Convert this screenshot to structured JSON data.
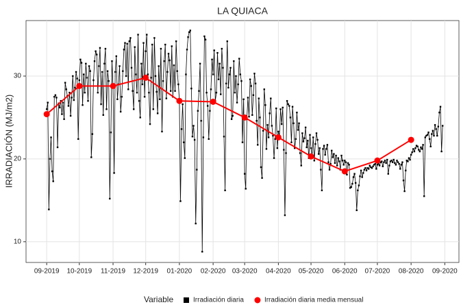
{
  "chart_data": {
    "type": "line",
    "title": "LA QUIACA",
    "y_label": "IRRADIACIÓN (MJ/m2)",
    "legend_title": "Variable",
    "xlim": [
      -19,
      379
    ],
    "ylim": [
      7.5,
      36.7
    ],
    "yticks": [
      10,
      20,
      30
    ],
    "grid": true,
    "legend_position": "bottom",
    "xticks": [
      {
        "value": 0,
        "label": "09-2019"
      },
      {
        "value": 30,
        "label": "10-2019"
      },
      {
        "value": 61,
        "label": "11-2019"
      },
      {
        "value": 91,
        "label": "12-2019"
      },
      {
        "value": 122,
        "label": "01-2020"
      },
      {
        "value": 153,
        "label": "02-2020"
      },
      {
        "value": 182,
        "label": "03-2020"
      },
      {
        "value": 213,
        "label": "04-2020"
      },
      {
        "value": 243,
        "label": "05-2020"
      },
      {
        "value": 274,
        "label": "06-2020"
      },
      {
        "value": 304,
        "label": "07-2020"
      },
      {
        "value": 335,
        "label": "08-2020"
      },
      {
        "value": 366,
        "label": "09-2020"
      }
    ],
    "series": [
      {
        "name": "Irradiación diaria",
        "color": "#000000",
        "marker": "square",
        "x": [
          0,
          1,
          2,
          3,
          4,
          5,
          6,
          7,
          8,
          9,
          10,
          11,
          12,
          13,
          14,
          15,
          16,
          17,
          18,
          19,
          20,
          21,
          22,
          23,
          24,
          25,
          26,
          27,
          28,
          29,
          30,
          31,
          32,
          33,
          34,
          35,
          36,
          37,
          38,
          39,
          40,
          41,
          42,
          43,
          44,
          45,
          46,
          47,
          48,
          49,
          50,
          51,
          52,
          53,
          54,
          55,
          56,
          57,
          58,
          59,
          60,
          61,
          62,
          63,
          64,
          65,
          66,
          67,
          68,
          69,
          70,
          71,
          72,
          73,
          74,
          75,
          76,
          77,
          78,
          79,
          80,
          81,
          82,
          83,
          84,
          85,
          86,
          87,
          88,
          89,
          90,
          91,
          92,
          93,
          94,
          95,
          96,
          97,
          98,
          99,
          100,
          101,
          102,
          103,
          104,
          105,
          106,
          107,
          108,
          109,
          110,
          111,
          112,
          113,
          114,
          115,
          116,
          117,
          118,
          119,
          120,
          121,
          122,
          123,
          124,
          125,
          126,
          127,
          128,
          129,
          130,
          131,
          132,
          133,
          134,
          135,
          136,
          137,
          138,
          139,
          140,
          141,
          142,
          143,
          144,
          145,
          146,
          147,
          148,
          149,
          150,
          151,
          152,
          153,
          154,
          155,
          156,
          157,
          158,
          159,
          160,
          161,
          162,
          163,
          164,
          165,
          166,
          167,
          168,
          169,
          170,
          171,
          172,
          173,
          174,
          175,
          176,
          177,
          178,
          179,
          180,
          181,
          182,
          183,
          184,
          185,
          186,
          187,
          188,
          189,
          190,
          191,
          192,
          193,
          194,
          195,
          196,
          197,
          198,
          199,
          200,
          201,
          202,
          203,
          204,
          205,
          206,
          207,
          208,
          209,
          210,
          211,
          212,
          213,
          214,
          215,
          216,
          217,
          218,
          219,
          220,
          221,
          222,
          223,
          224,
          225,
          226,
          227,
          228,
          229,
          230,
          231,
          232,
          233,
          234,
          235,
          236,
          237,
          238,
          239,
          240,
          241,
          242,
          243,
          244,
          245,
          246,
          247,
          248,
          249,
          250,
          251,
          252,
          253,
          254,
          255,
          256,
          257,
          258,
          259,
          260,
          261,
          262,
          263,
          264,
          265,
          266,
          267,
          268,
          269,
          270,
          271,
          272,
          273,
          274,
          275,
          276,
          277,
          278,
          279,
          280,
          281,
          282,
          283,
          284,
          285,
          286,
          287,
          288,
          289,
          290,
          291,
          292,
          293,
          294,
          295,
          296,
          297,
          298,
          299,
          300,
          301,
          302,
          303,
          304,
          305,
          306,
          307,
          308,
          309,
          310,
          311,
          312,
          313,
          314,
          315,
          316,
          317,
          318,
          319,
          320,
          321,
          322,
          323,
          324,
          325,
          326,
          327,
          328,
          329,
          330,
          331,
          332,
          333,
          334,
          335,
          336,
          337,
          338,
          339,
          340,
          341,
          342,
          343,
          344,
          345,
          346,
          347,
          348,
          349,
          350,
          351,
          352,
          353,
          354,
          355,
          356,
          357,
          358,
          359,
          360,
          361,
          362,
          363,
          364
        ],
        "values": [
          26,
          26.8,
          13.9,
          20,
          22.6,
          18.5,
          17.3,
          27.5,
          27.7,
          27.4,
          21.4,
          26.7,
          26.2,
          27,
          25.4,
          26.8,
          24.8,
          29.2,
          28.4,
          27.6,
          26.4,
          28,
          25.2,
          27.4,
          30,
          27.1,
          28.6,
          30.5,
          29.7,
          22.4,
          29.5,
          32,
          31.6,
          26.5,
          30.2,
          28,
          31.5,
          29.8,
          27,
          31.2,
          30.6,
          20.2,
          23,
          29.5,
          31.8,
          33,
          32.6,
          28,
          31.2,
          33.4,
          26.6,
          30.5,
          25.3,
          31.5,
          33.3,
          26,
          30.6,
          29.4,
          15.2,
          23.2,
          31.8,
          28.6,
          18.3,
          30.5,
          32.4,
          27.2,
          29,
          31.2,
          25.7,
          27.5,
          30.6,
          33.2,
          34,
          30,
          33.9,
          28.4,
          34.2,
          34.6,
          31,
          28.2,
          26,
          33.5,
          30.2,
          28,
          35,
          27,
          25,
          31.5,
          29,
          34,
          27.5,
          33,
          35,
          30.2,
          28,
          24.2,
          29.8,
          33.8,
          26,
          34.6,
          30,
          28.1,
          25.5,
          31.2,
          27.2,
          33.3,
          23.3,
          29.4,
          31.8,
          33.8,
          27.3,
          30.5,
          32.7,
          31.9,
          28.2,
          33.6,
          27.5,
          31.3,
          28.2,
          34.2,
          30.6,
          29,
          27,
          14.9,
          23.6,
          26.6,
          22,
          20.1,
          30.2,
          33.2,
          34.7,
          35.3,
          35.5,
          28.5,
          22.7,
          24,
          22.3,
          12.2,
          18.7,
          25.8,
          28.2,
          31.5,
          24.6,
          8.8,
          22.6,
          34.8,
          34.4,
          28,
          26.4,
          22.4,
          25.8,
          28.4,
          32,
          30.2,
          33.1,
          27,
          28,
          32.8,
          29.6,
          31.5,
          27.8,
          33.3,
          31,
          22.7,
          16.2,
          29.1,
          34.2,
          28.6,
          30.2,
          31,
          24.8,
          25.2,
          31.8,
          28,
          30,
          26.8,
          29,
          32.1,
          30.2,
          29.4,
          22,
          27.2,
          18.2,
          16.4,
          24.8,
          27.4,
          25.1,
          29.6,
          28.8,
          25.3,
          27.7,
          30.3,
          29.1,
          24.6,
          21.7,
          27.3,
          25,
          19,
          17.7,
          23.4,
          28.4,
          26.5,
          21.2,
          24.1,
          22.6,
          25.5,
          27.3,
          24,
          22.8,
          20.1,
          22.4,
          26.1,
          21.3,
          23.3,
          22.8,
          26,
          24.2,
          26.2,
          21.1,
          13.2,
          20.7,
          27,
          26.6,
          26.4,
          25,
          22,
          26.3,
          24.3,
          21.3,
          22.4,
          25.6,
          23.5,
          24.3,
          20.7,
          19.2,
          23.1,
          22.1,
          22.5,
          23.8,
          21.4,
          22.2,
          20.1,
          22.9,
          21.3,
          20.4,
          22.6,
          19.8,
          21.8,
          23.1,
          22.3,
          20.6,
          21.3,
          18.7,
          16.2,
          21.2,
          21.6,
          20.5,
          21.2,
          21.7,
          19.6,
          18.7,
          19.4,
          21,
          20.2,
          20.6,
          19.5,
          20.4,
          19.2,
          20.1,
          19.7,
          18.7,
          20.4,
          19.8,
          19.3,
          19.8,
          19.6,
          18.1,
          19.5,
          19.3,
          16.5,
          16.6,
          17,
          17.8,
          18.2,
          17.1,
          13.8,
          16.2,
          16.8,
          17.9,
          18.6,
          17.8,
          18.3,
          18.7,
          18.9,
          18.6,
          18.9,
          18.8,
          19.2,
          19,
          18.9,
          19.1,
          19.3,
          19.4,
          18.8,
          19.3,
          19.4,
          19.2,
          19.6,
          19.7,
          19.1,
          19.6,
          19.8,
          19.5,
          19.9,
          18.2,
          19.2,
          19.7,
          19.8,
          19.6,
          19.9,
          19.5,
          19.3,
          19.8,
          19.6,
          19.4,
          18.8,
          19.3,
          19.6,
          17.4,
          16.1,
          18.6,
          19.8,
          19.7,
          20.1,
          19.9,
          20.5,
          20.8,
          21.2,
          20.9,
          21.3,
          21.6,
          21.5,
          21.1,
          20.9,
          21.4,
          21.2,
          21.7,
          15.5,
          22.6,
          22.8,
          22.9,
          23.2,
          22.4,
          21.5,
          23,
          23.4,
          22.8,
          24.1,
          23.6,
          22.8,
          23.9,
          25.6,
          26.3,
          20.9,
          24
        ]
      },
      {
        "name": "Irradiación diaria media mensual",
        "color": "#ff0000",
        "marker": "circle",
        "x": [
          0,
          30,
          61,
          91,
          122,
          153,
          182,
          213,
          243,
          274,
          304,
          335
        ],
        "values": [
          25.4,
          28.8,
          28.8,
          29.8,
          27.0,
          26.9,
          25.0,
          22.6,
          20.3,
          18.5,
          19.8,
          22.3
        ]
      }
    ]
  }
}
